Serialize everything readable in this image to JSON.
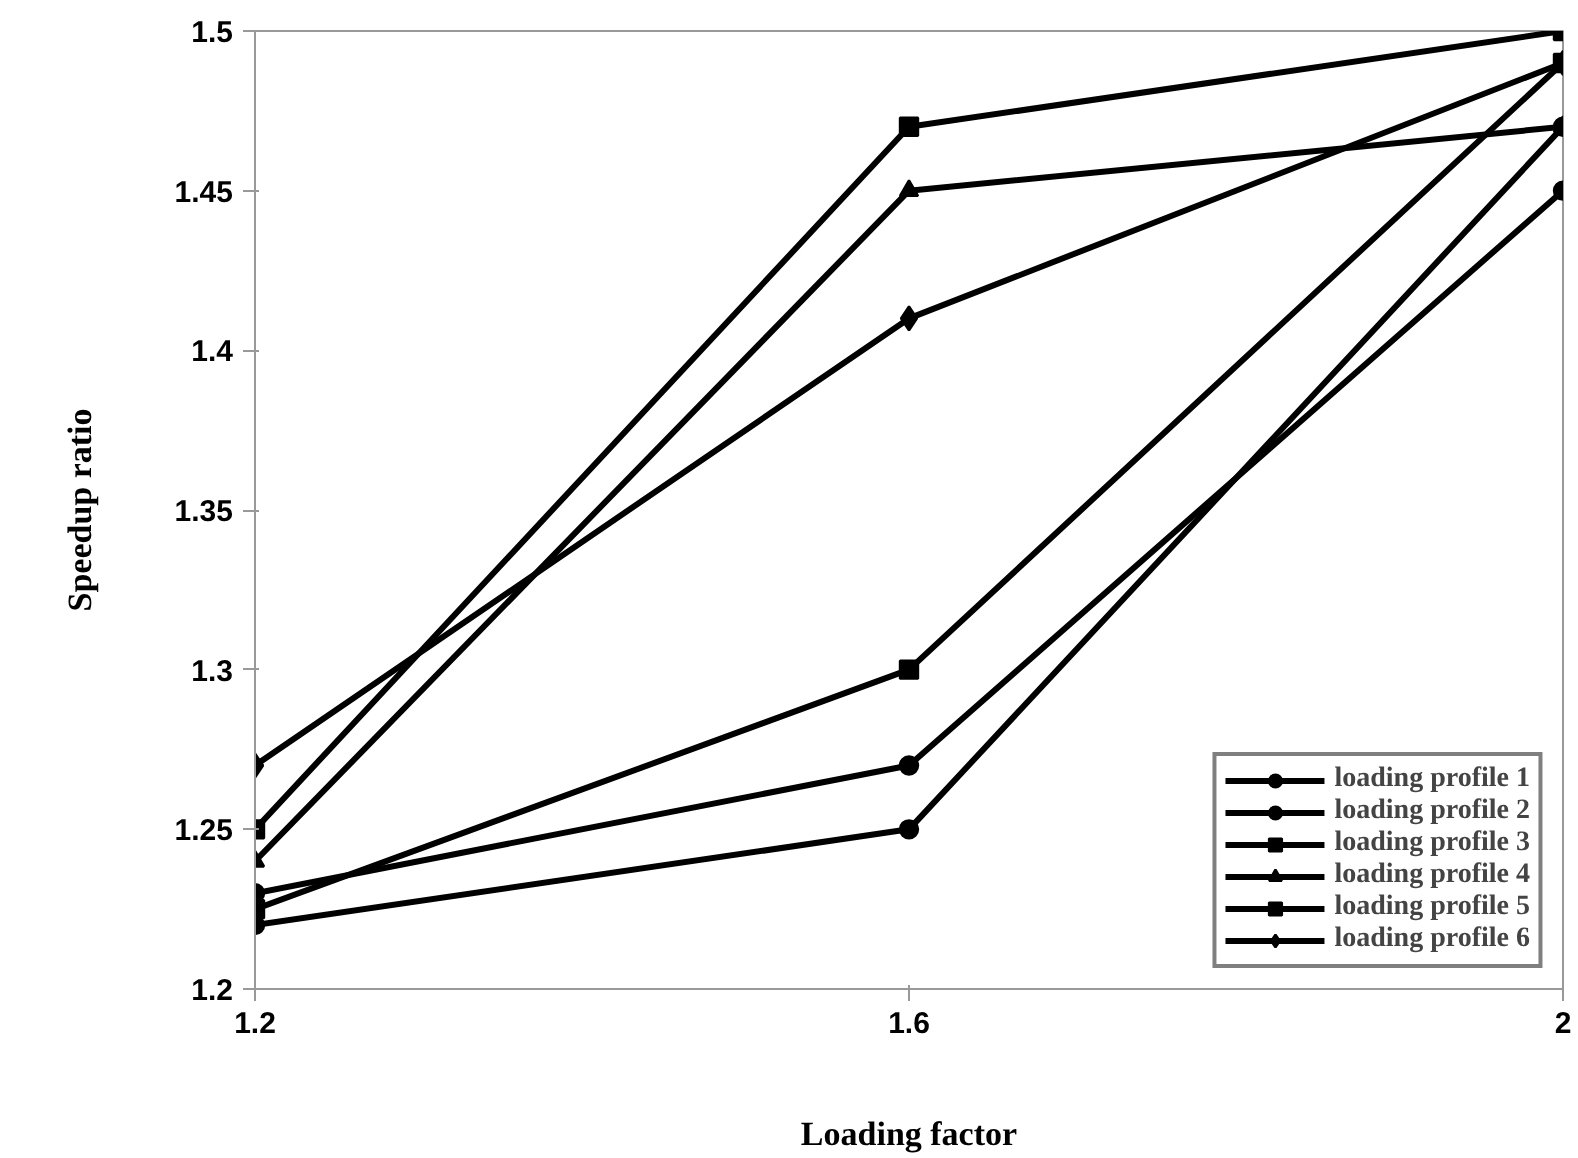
{
  "chart_data": {
    "type": "line",
    "xlabel": "Loading factor",
    "ylabel": "Speedup ratio",
    "x": [
      1.2,
      1.6,
      2
    ],
    "xlim": [
      1.2,
      2
    ],
    "xticks": [
      1.2,
      1.6,
      2
    ],
    "ylim": [
      1.2,
      1.5
    ],
    "yticks": [
      1.2,
      1.25,
      1.3,
      1.35,
      1.4,
      1.45,
      1.5
    ],
    "grid": false,
    "legend": "bottom right",
    "line_style": "solid",
    "series": [
      {
        "name": "loading profile 1",
        "color": "#000000",
        "marker": "circle",
        "values": [
          1.23,
          1.27,
          1.45
        ]
      },
      {
        "name": "loading profile 2",
        "color": "#000000",
        "marker": "circle",
        "values": [
          1.22,
          1.25,
          1.47
        ]
      },
      {
        "name": "loading profile 3",
        "color": "#000000",
        "marker": "square",
        "values": [
          1.25,
          1.47,
          1.5
        ]
      },
      {
        "name": "loading profile 4",
        "color": "#000000",
        "marker": "triangle",
        "values": [
          1.24,
          1.45,
          1.47
        ]
      },
      {
        "name": "loading profile 5",
        "color": "#000000",
        "marker": "square",
        "values": [
          1.225,
          1.3,
          1.49
        ]
      },
      {
        "name": "loading profile 6",
        "color": "#000000",
        "marker": "diamond",
        "values": [
          1.27,
          1.41,
          1.49
        ]
      }
    ]
  }
}
